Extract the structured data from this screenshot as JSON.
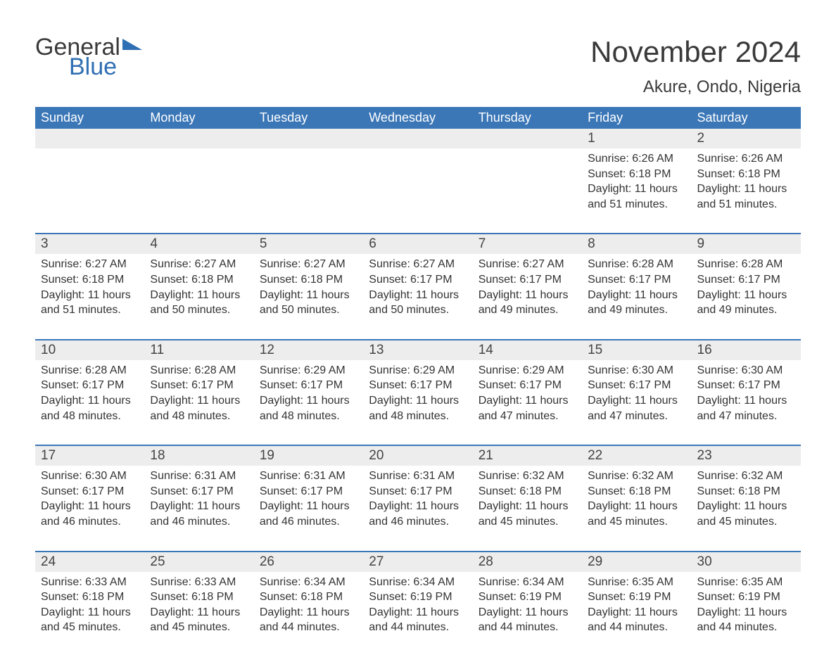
{
  "brand": {
    "word1": "General",
    "word2": "Blue",
    "accent_color": "#2f6fb3"
  },
  "title": "November 2024",
  "location": "Akure, Ondo, Nigeria",
  "colors": {
    "header_bg": "#3b77b7",
    "header_text": "#ffffff",
    "row_divider": "#3b77b7",
    "daynum_bg": "#ededed",
    "body_text": "#333333",
    "page_bg": "#ffffff"
  },
  "typography": {
    "title_fontsize": 42,
    "location_fontsize": 24,
    "dayheader_fontsize": 18,
    "daynum_fontsize": 19,
    "detail_fontsize": 16
  },
  "calendar": {
    "type": "table",
    "columns": [
      "Sunday",
      "Monday",
      "Tuesday",
      "Wednesday",
      "Thursday",
      "Friday",
      "Saturday"
    ],
    "weeks": [
      [
        null,
        null,
        null,
        null,
        null,
        {
          "day": "1",
          "sunrise": "6:26 AM",
          "sunset": "6:18 PM",
          "daylight": "11 hours and 51 minutes."
        },
        {
          "day": "2",
          "sunrise": "6:26 AM",
          "sunset": "6:18 PM",
          "daylight": "11 hours and 51 minutes."
        }
      ],
      [
        {
          "day": "3",
          "sunrise": "6:27 AM",
          "sunset": "6:18 PM",
          "daylight": "11 hours and 51 minutes."
        },
        {
          "day": "4",
          "sunrise": "6:27 AM",
          "sunset": "6:18 PM",
          "daylight": "11 hours and 50 minutes."
        },
        {
          "day": "5",
          "sunrise": "6:27 AM",
          "sunset": "6:18 PM",
          "daylight": "11 hours and 50 minutes."
        },
        {
          "day": "6",
          "sunrise": "6:27 AM",
          "sunset": "6:17 PM",
          "daylight": "11 hours and 50 minutes."
        },
        {
          "day": "7",
          "sunrise": "6:27 AM",
          "sunset": "6:17 PM",
          "daylight": "11 hours and 49 minutes."
        },
        {
          "day": "8",
          "sunrise": "6:28 AM",
          "sunset": "6:17 PM",
          "daylight": "11 hours and 49 minutes."
        },
        {
          "day": "9",
          "sunrise": "6:28 AM",
          "sunset": "6:17 PM",
          "daylight": "11 hours and 49 minutes."
        }
      ],
      [
        {
          "day": "10",
          "sunrise": "6:28 AM",
          "sunset": "6:17 PM",
          "daylight": "11 hours and 48 minutes."
        },
        {
          "day": "11",
          "sunrise": "6:28 AM",
          "sunset": "6:17 PM",
          "daylight": "11 hours and 48 minutes."
        },
        {
          "day": "12",
          "sunrise": "6:29 AM",
          "sunset": "6:17 PM",
          "daylight": "11 hours and 48 minutes."
        },
        {
          "day": "13",
          "sunrise": "6:29 AM",
          "sunset": "6:17 PM",
          "daylight": "11 hours and 48 minutes."
        },
        {
          "day": "14",
          "sunrise": "6:29 AM",
          "sunset": "6:17 PM",
          "daylight": "11 hours and 47 minutes."
        },
        {
          "day": "15",
          "sunrise": "6:30 AM",
          "sunset": "6:17 PM",
          "daylight": "11 hours and 47 minutes."
        },
        {
          "day": "16",
          "sunrise": "6:30 AM",
          "sunset": "6:17 PM",
          "daylight": "11 hours and 47 minutes."
        }
      ],
      [
        {
          "day": "17",
          "sunrise": "6:30 AM",
          "sunset": "6:17 PM",
          "daylight": "11 hours and 46 minutes."
        },
        {
          "day": "18",
          "sunrise": "6:31 AM",
          "sunset": "6:17 PM",
          "daylight": "11 hours and 46 minutes."
        },
        {
          "day": "19",
          "sunrise": "6:31 AM",
          "sunset": "6:17 PM",
          "daylight": "11 hours and 46 minutes."
        },
        {
          "day": "20",
          "sunrise": "6:31 AM",
          "sunset": "6:17 PM",
          "daylight": "11 hours and 46 minutes."
        },
        {
          "day": "21",
          "sunrise": "6:32 AM",
          "sunset": "6:18 PM",
          "daylight": "11 hours and 45 minutes."
        },
        {
          "day": "22",
          "sunrise": "6:32 AM",
          "sunset": "6:18 PM",
          "daylight": "11 hours and 45 minutes."
        },
        {
          "day": "23",
          "sunrise": "6:32 AM",
          "sunset": "6:18 PM",
          "daylight": "11 hours and 45 minutes."
        }
      ],
      [
        {
          "day": "24",
          "sunrise": "6:33 AM",
          "sunset": "6:18 PM",
          "daylight": "11 hours and 45 minutes."
        },
        {
          "day": "25",
          "sunrise": "6:33 AM",
          "sunset": "6:18 PM",
          "daylight": "11 hours and 45 minutes."
        },
        {
          "day": "26",
          "sunrise": "6:34 AM",
          "sunset": "6:18 PM",
          "daylight": "11 hours and 44 minutes."
        },
        {
          "day": "27",
          "sunrise": "6:34 AM",
          "sunset": "6:19 PM",
          "daylight": "11 hours and 44 minutes."
        },
        {
          "day": "28",
          "sunrise": "6:34 AM",
          "sunset": "6:19 PM",
          "daylight": "11 hours and 44 minutes."
        },
        {
          "day": "29",
          "sunrise": "6:35 AM",
          "sunset": "6:19 PM",
          "daylight": "11 hours and 44 minutes."
        },
        {
          "day": "30",
          "sunrise": "6:35 AM",
          "sunset": "6:19 PM",
          "daylight": "11 hours and 44 minutes."
        }
      ]
    ],
    "labels": {
      "sunrise": "Sunrise: ",
      "sunset": "Sunset: ",
      "daylight": "Daylight: "
    }
  }
}
